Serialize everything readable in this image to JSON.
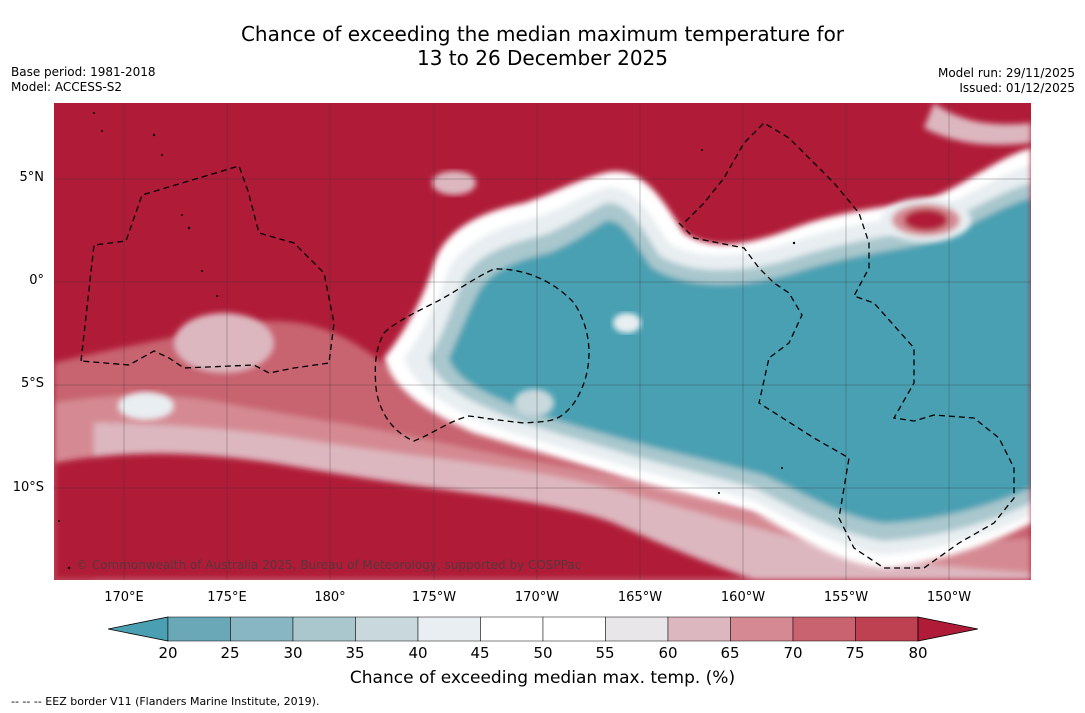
{
  "title": {
    "line1": "Chance of exceeding the median maximum temperature for",
    "line2": "13 to 26 December 2025"
  },
  "meta": {
    "base_period": "Base period: 1981-2018",
    "model": "Model: ACCESS-S2",
    "model_run": "Model run: 29/11/2025",
    "issued": "Issued: 01/12/2025"
  },
  "map": {
    "latitude_labels": [
      "5°N",
      "0°",
      "5°S",
      "10°S"
    ],
    "longitude_labels": [
      "170°E",
      "175°E",
      "180°",
      "175°W",
      "170°W",
      "165°W",
      "160°W",
      "155°W",
      "150°W"
    ],
    "copyright": "© Commonwealth of Australia 2025, Bureau of Meteorology, supported by COSPPac"
  },
  "colorbar": {
    "ticks": [
      "20",
      "25",
      "30",
      "35",
      "40",
      "45",
      "50",
      "55",
      "60",
      "65",
      "70",
      "75",
      "80"
    ],
    "label": "Chance of exceeding median max. temp. (%)",
    "colors": {
      "below_20": "#4aa0b2",
      "20_25": "#6aa8b8",
      "25_30": "#88b6c3",
      "30_35": "#a9c7cd",
      "35_40": "#c9d8dd",
      "40_45": "#e8eef1",
      "45_50": "#ffffff",
      "50_55": "#ffffff",
      "55_60": "#e8e6e8",
      "60_65": "#ddb7bf",
      "65_70": "#d58a93",
      "70_75": "#c8636f",
      "75_80": "#bd4150",
      "above_80": "#b01c38"
    }
  },
  "footnote": "--  --  -- EEZ border V11 (Flanders Marine Institute, 2019)."
}
